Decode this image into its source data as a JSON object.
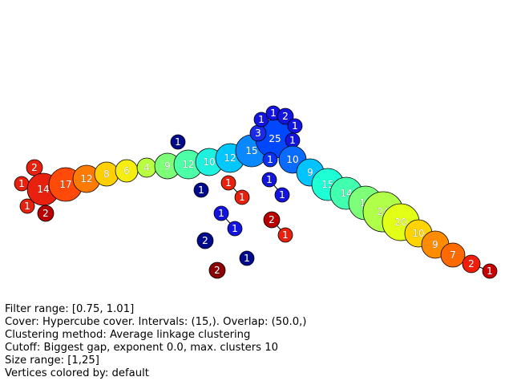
{
  "info": {
    "filter_range": "Filter range: [0.75, 1.01]",
    "cover": "Cover: Hypercube cover. Intervals: (15,). Overlap: (50.0,)",
    "clustering": "Clustering method: Average linkage clustering",
    "cutoff": "Cutoff: Biggest gap, exponent 0.0, max. clusters 10",
    "size_range": "Size range: [1,25]",
    "coloring": "Vertices colored by: default"
  },
  "nodes": [
    {
      "id": "a1",
      "label": "2",
      "color": "#e8210f"
    },
    {
      "id": "a2",
      "label": "1",
      "color": "#e8210f"
    },
    {
      "id": "a3",
      "label": "14",
      "color": "#e8210f"
    },
    {
      "id": "a4",
      "label": "1",
      "color": "#e8210f"
    },
    {
      "id": "a5",
      "label": "2",
      "color": "#b80000"
    },
    {
      "id": "a6",
      "label": "17",
      "color": "#ff4a0a"
    },
    {
      "id": "a7",
      "label": "12",
      "color": "#ff7a00"
    },
    {
      "id": "a8",
      "label": "8",
      "color": "#ffd000"
    },
    {
      "id": "a9",
      "label": "6",
      "color": "#f5ee10"
    },
    {
      "id": "a10",
      "label": "4",
      "color": "#b8ff40"
    },
    {
      "id": "a11",
      "label": "9",
      "color": "#7dff78"
    },
    {
      "id": "a12",
      "label": "12",
      "color": "#4dffa6"
    },
    {
      "id": "a13",
      "label": "10",
      "color": "#1ef2de"
    },
    {
      "id": "a14",
      "label": "12",
      "color": "#00c8ff"
    },
    {
      "id": "a15",
      "label": "15",
      "color": "#0a88ff"
    },
    {
      "id": "a16",
      "label": "25",
      "color": "#0048ff"
    },
    {
      "id": "a17",
      "label": "3",
      "color": "#1a2ae8"
    },
    {
      "id": "a18",
      "label": "1",
      "color": "#1414e0"
    },
    {
      "id": "a19",
      "label": "1",
      "color": "#1414e0"
    },
    {
      "id": "a20",
      "label": "2",
      "color": "#1414e0"
    },
    {
      "id": "a21",
      "label": "1",
      "color": "#1414e0"
    },
    {
      "id": "a22",
      "label": "1",
      "color": "#1414e0"
    },
    {
      "id": "a23",
      "label": "1",
      "color": "#0a30f0"
    },
    {
      "id": "a24",
      "label": "10",
      "color": "#0a6cff"
    },
    {
      "id": "a25",
      "label": "9",
      "color": "#00c4ff"
    },
    {
      "id": "a26",
      "label": "15",
      "color": "#1effd6"
    },
    {
      "id": "a27",
      "label": "14",
      "color": "#42ffb0"
    },
    {
      "id": "a28",
      "label": "16",
      "color": "#7dff7a"
    },
    {
      "id": "a29",
      "label": "24",
      "color": "#b0ff48"
    },
    {
      "id": "a30",
      "label": "20",
      "color": "#e2ff18"
    },
    {
      "id": "a31",
      "label": "10",
      "color": "#ffd400"
    },
    {
      "id": "a32",
      "label": "9",
      "color": "#ff8c00"
    },
    {
      "id": "a33",
      "label": "7",
      "color": "#ff6a00"
    },
    {
      "id": "a34",
      "label": "2",
      "color": "#f01d0a"
    },
    {
      "id": "a35",
      "label": "1",
      "color": "#c80000"
    },
    {
      "id": "b1",
      "label": "1",
      "color": "#000a8c"
    },
    {
      "id": "b2",
      "label": "1",
      "color": "#000a8c"
    },
    {
      "id": "b3",
      "label": "1",
      "color": "#e8210f"
    },
    {
      "id": "b4",
      "label": "1",
      "color": "#e8210f"
    },
    {
      "id": "b5",
      "label": "1",
      "color": "#1414e0"
    },
    {
      "id": "b6",
      "label": "1",
      "color": "#1414e0"
    },
    {
      "id": "b7",
      "label": "1",
      "color": "#1414e0"
    },
    {
      "id": "b8",
      "label": "1",
      "color": "#1414e0"
    },
    {
      "id": "b9",
      "label": "2",
      "color": "#000a8c"
    },
    {
      "id": "b10",
      "label": "2",
      "color": "#b80000"
    },
    {
      "id": "b11",
      "label": "1",
      "color": "#e8210f"
    },
    {
      "id": "b12",
      "label": "1",
      "color": "#000a8c"
    },
    {
      "id": "b13",
      "label": "2",
      "color": "#8b0000"
    }
  ],
  "edges": [
    [
      "a1",
      "a3"
    ],
    [
      "a2",
      "a3"
    ],
    [
      "a4",
      "a3"
    ],
    [
      "a5",
      "a3"
    ],
    [
      "a3",
      "a6"
    ],
    [
      "a6",
      "a7"
    ],
    [
      "a7",
      "a8"
    ],
    [
      "a8",
      "a9"
    ],
    [
      "a9",
      "a10"
    ],
    [
      "a10",
      "a11"
    ],
    [
      "a11",
      "a12"
    ],
    [
      "a12",
      "a13"
    ],
    [
      "a13",
      "a14"
    ],
    [
      "a14",
      "a15"
    ],
    [
      "a15",
      "a16"
    ],
    [
      "a16",
      "a17"
    ],
    [
      "a16",
      "a18"
    ],
    [
      "a16",
      "a19"
    ],
    [
      "a16",
      "a20"
    ],
    [
      "a16",
      "a21"
    ],
    [
      "a16",
      "a22"
    ],
    [
      "a16",
      "a23"
    ],
    [
      "a16",
      "a24"
    ],
    [
      "a24",
      "a25"
    ],
    [
      "a25",
      "a26"
    ],
    [
      "a26",
      "a27"
    ],
    [
      "a27",
      "a28"
    ],
    [
      "a28",
      "a29"
    ],
    [
      "a29",
      "a30"
    ],
    [
      "a30",
      "a31"
    ],
    [
      "a31",
      "a32"
    ],
    [
      "a32",
      "a33"
    ],
    [
      "a33",
      "a34"
    ],
    [
      "a34",
      "a35"
    ],
    [
      "b3",
      "b4"
    ],
    [
      "b5",
      "b6"
    ],
    [
      "b7",
      "b8"
    ],
    [
      "b10",
      "b11"
    ]
  ]
}
